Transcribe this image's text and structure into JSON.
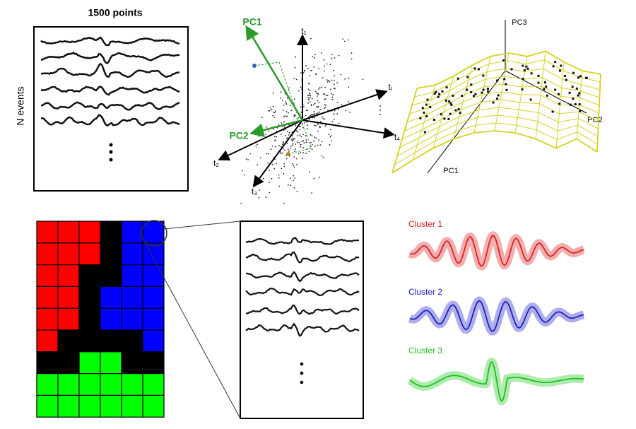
{
  "panels": {
    "waveforms": {
      "title": "1500 points",
      "ylabel": "N events"
    },
    "pca": {
      "pc1": "PC1",
      "pc2": "PC2",
      "axes": [
        "t₁",
        "t₂",
        "t₃",
        "t₄",
        "tᵢ"
      ]
    },
    "manifold": {
      "axes": [
        "PC3",
        "PC2",
        "PC1"
      ]
    },
    "clusters": [
      "Cluster 1",
      "Cluster 2",
      "Cluster 3"
    ]
  }
}
